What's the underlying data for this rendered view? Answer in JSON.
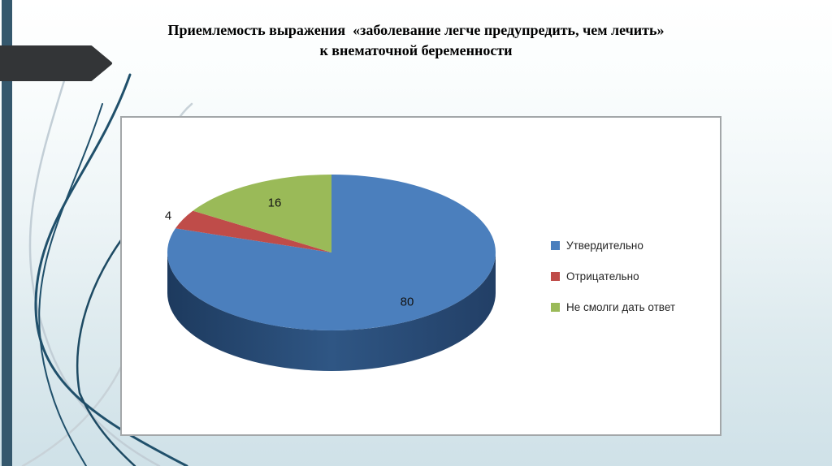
{
  "slide": {
    "title": "Приемлемость выражения  «заболевание легче предупредить, чем лечить» к внематочной беременности"
  },
  "chart_data": {
    "type": "pie",
    "style_3d": true,
    "title": "Приемлемость выражения «заболевание легче предупредить, чем лечить» к внематочной беременности",
    "labels": [
      "Утвердительно",
      "Отрицательно",
      "Не смолги дать ответ"
    ],
    "values": [
      80,
      4,
      16
    ],
    "data_labels": [
      "80",
      "4",
      "16"
    ],
    "colors": [
      "#4b7fbd",
      "#bf4c49",
      "#9aba58"
    ],
    "side_gradient": [
      "#1d3a5e",
      "#2f5684",
      "#223f66"
    ],
    "start_angle_deg": 0,
    "direction": "clockwise",
    "legend_position": "right",
    "plot_background": "#ffffff"
  },
  "theme": {
    "accent_bar_color": "#35586d",
    "arrow_color": "#333537",
    "swoosh_dark": "#20506b",
    "swoosh_light": "#c2ced6"
  }
}
